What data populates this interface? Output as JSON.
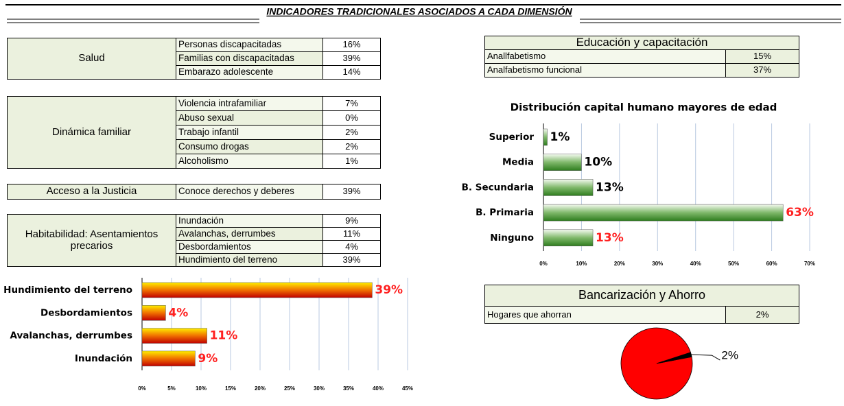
{
  "title": "INDICADORES TRADICIONALES ASOCIADOS A CADA DIMENSIÓN",
  "left_tables": [
    {
      "label": "Salud",
      "rows": [
        [
          "Personas discapacitadas",
          "16%"
        ],
        [
          "Familias con  discapacitadas",
          "39%"
        ],
        [
          "Embarazo adolescente",
          "14%"
        ]
      ]
    },
    {
      "label": "Dinámica familiar",
      "rows": [
        [
          "Violencia intrafamiliar",
          "7%"
        ],
        [
          "Abuso sexual",
          "0%"
        ],
        [
          "Trabajo infantil",
          "2%"
        ],
        [
          "Consumo drogas",
          "2%"
        ],
        [
          "Alcoholismo",
          "1%"
        ]
      ]
    },
    {
      "label": "Acceso a la Justicia",
      "rows": [
        [
          "Conoce derechos y deberes",
          "39%"
        ]
      ]
    },
    {
      "label": "Habitabilidad: Asentamientos precarios",
      "rows": [
        [
          "Inundación",
          "9%"
        ],
        [
          "Avalanchas, derrumbes",
          "11%"
        ],
        [
          "Desbordamientos",
          "4%"
        ],
        [
          "Hundimiento del terreno",
          "39%"
        ]
      ]
    }
  ],
  "right_tables": [
    {
      "header": "Educación y capacitación",
      "rows": [
        [
          "Anallfabetismo",
          "15%"
        ],
        [
          "Analfabetismo funcional",
          "37%"
        ]
      ]
    },
    {
      "header": "Bancarización y Ahorro",
      "rows": [
        [
          "Hogares que ahorran",
          "2%"
        ]
      ]
    }
  ],
  "chart_data": [
    {
      "type": "hbar",
      "categories": [
        "Hundimiento del terreno",
        "Desbordamientos",
        "Avalanchas, derrumbes",
        "Inundación"
      ],
      "values": [
        39,
        4,
        11,
        9
      ],
      "value_labels": [
        "39%",
        "4%",
        "11%",
        "9%"
      ],
      "value_label_colors": [
        "#ff2020",
        "#ff2020",
        "#ff2020",
        "#ff2020"
      ],
      "bar_gradient": [
        "#ffee00",
        "#f07000",
        "#c00000"
      ],
      "grid": true,
      "xlim": [
        0,
        45
      ],
      "xticks": [
        {
          "value": 0,
          "label": "0%"
        },
        {
          "value": 5,
          "label": "5%"
        },
        {
          "value": 10,
          "label": "10%"
        },
        {
          "value": 15,
          "label": "15%"
        },
        {
          "value": 20,
          "label": "20%"
        },
        {
          "value": 25,
          "label": "25%"
        },
        {
          "value": 30,
          "label": "30%"
        },
        {
          "value": 35,
          "label": "35%"
        },
        {
          "value": 40,
          "label": "40%"
        },
        {
          "value": 45,
          "label": "45%"
        }
      ]
    },
    {
      "type": "hbar",
      "title": "Distribución capital humano mayores de edad",
      "categories": [
        "Superior",
        "Media",
        "B. Secundaria",
        "B. Primaria",
        "Ninguno"
      ],
      "values": [
        1,
        10,
        13,
        63,
        13
      ],
      "value_labels": [
        "1%",
        "10%",
        "13%",
        "63%",
        "13%"
      ],
      "value_label_colors": [
        "#000000",
        "#000000",
        "#000000",
        "#ff2020",
        "#ff2020"
      ],
      "bar_gradient": [
        "#f4faf0",
        "#7fb86a",
        "#2e7d1e"
      ],
      "grid": true,
      "xlim": [
        0,
        70
      ],
      "xticks": [
        {
          "value": 0,
          "label": "0%"
        },
        {
          "value": 10,
          "label": "10%"
        },
        {
          "value": 20,
          "label": "20%"
        },
        {
          "value": 30,
          "label": "30%"
        },
        {
          "value": 40,
          "label": "40%"
        },
        {
          "value": 50,
          "label": "50%"
        },
        {
          "value": 60,
          "label": "60%"
        },
        {
          "value": 70,
          "label": "70%"
        }
      ]
    },
    {
      "type": "pie",
      "values": [
        98,
        2
      ],
      "value_labels": [
        null,
        "2%"
      ],
      "colors": [
        "#ff0000",
        "#000000"
      ]
    }
  ]
}
